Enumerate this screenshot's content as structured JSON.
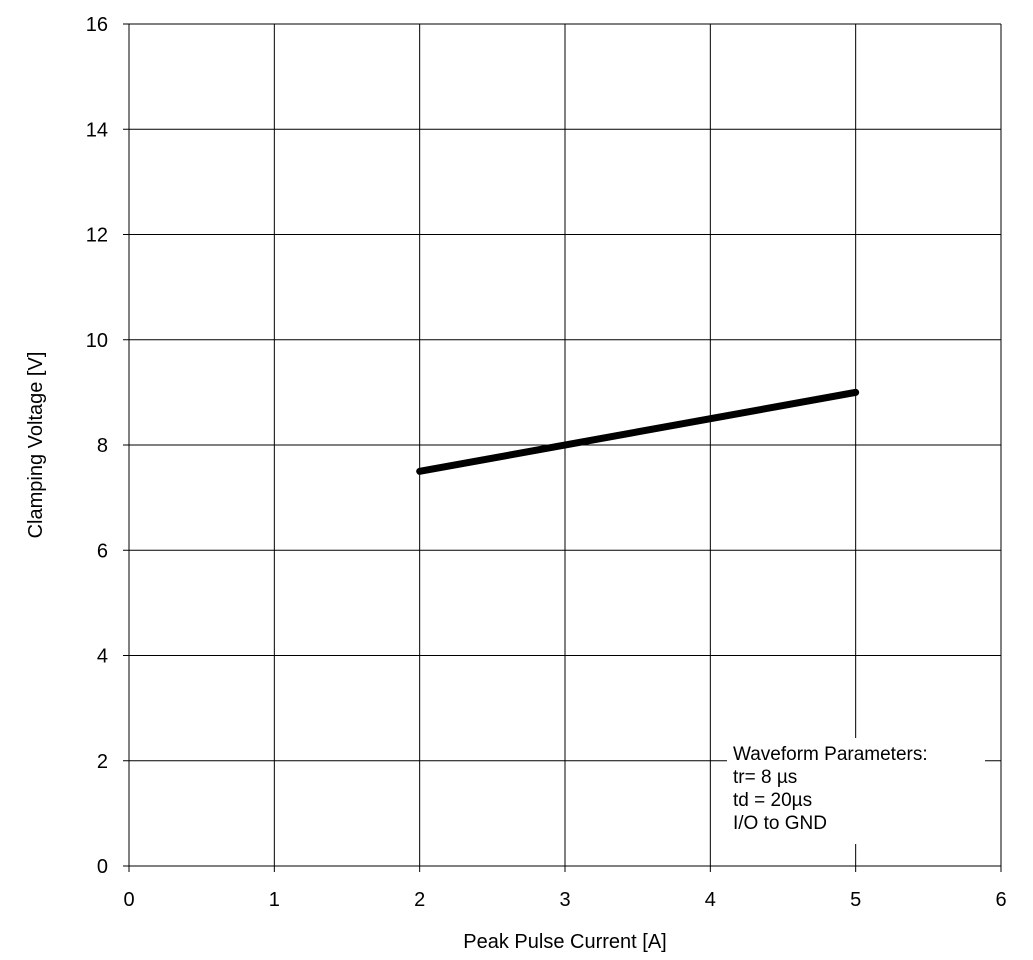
{
  "chart_data": {
    "type": "line",
    "title": "",
    "xlabel": "Peak Pulse Current [A]",
    "ylabel": "Clamping Voltage [V]",
    "xlim": [
      0,
      6
    ],
    "ylim": [
      0,
      16
    ],
    "x_ticks": [
      0,
      1,
      2,
      3,
      4,
      5,
      6
    ],
    "y_ticks": [
      0,
      2,
      4,
      6,
      8,
      10,
      12,
      14,
      16
    ],
    "grid": true,
    "series": [
      {
        "x": [
          2,
          5
        ],
        "y": [
          7.5,
          9
        ],
        "color": "#000000"
      }
    ],
    "annotation": {
      "lines": [
        "Waveform Parameters:",
        "tr= 8 µs",
        "td = 20µs",
        "I/O to GND"
      ],
      "placement": "bottom-right"
    }
  }
}
